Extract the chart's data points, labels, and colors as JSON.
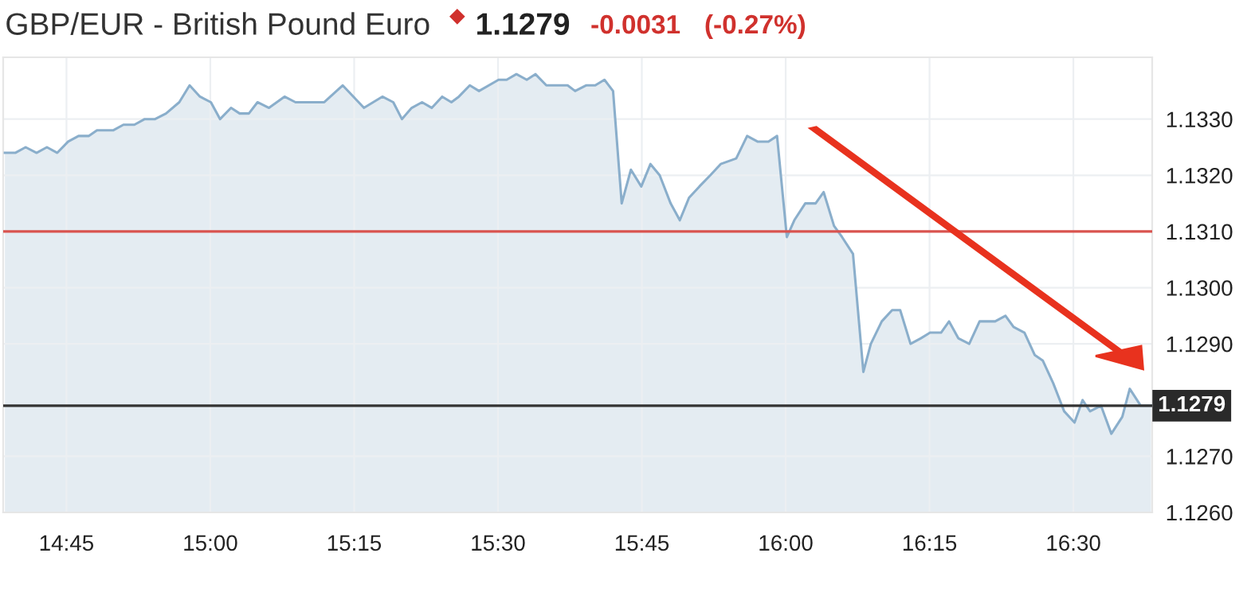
{
  "chart_data": {
    "type": "area",
    "title": "GBP/EUR - British Pound Euro",
    "annotations": [
      "1.1279",
      "-0.0031",
      "(-0.27%)"
    ],
    "x": [
      14.643,
      14.661,
      14.679,
      14.698,
      14.716,
      14.734,
      14.753,
      14.771,
      14.789,
      14.803,
      14.831,
      14.849,
      14.868,
      14.886,
      14.904,
      14.923,
      14.946,
      14.964,
      14.982,
      15.001,
      15.017,
      15.036,
      15.051,
      15.067,
      15.082,
      15.102,
      15.129,
      15.148,
      15.198,
      15.23,
      15.267,
      15.299,
      15.318,
      15.333,
      15.35,
      15.368,
      15.385,
      15.403,
      15.419,
      15.432,
      15.451,
      15.467,
      15.501,
      15.515,
      15.532,
      15.55,
      15.565,
      15.584,
      15.621,
      15.634,
      15.653,
      15.669,
      15.685,
      15.7,
      15.715,
      15.731,
      15.749,
      15.765,
      15.781,
      15.8,
      15.816,
      15.832,
      15.85,
      15.869,
      15.887,
      15.914,
      15.933,
      15.951,
      15.97,
      15.985,
      16.002,
      16.015,
      16.034,
      16.052,
      16.066,
      16.084,
      16.098,
      16.117,
      16.135,
      16.148,
      16.167,
      16.185,
      16.199,
      16.217,
      16.235,
      16.251,
      16.27,
      16.284,
      16.3,
      16.319,
      16.337,
      16.364,
      16.382,
      16.396,
      16.415,
      16.433,
      16.447,
      16.465,
      16.484,
      16.502,
      16.516,
      16.529,
      16.548,
      16.566,
      16.585,
      16.598,
      16.617,
      16.635
    ],
    "series": [
      {
        "color": "#8aaecb",
        "values": [
          1.1324,
          1.1324,
          1.1325,
          1.1324,
          1.1325,
          1.1324,
          1.1326,
          1.1327,
          1.1327,
          1.1328,
          1.1328,
          1.1329,
          1.1329,
          1.133,
          1.133,
          1.1331,
          1.1333,
          1.1336,
          1.1334,
          1.1333,
          1.133,
          1.1332,
          1.1331,
          1.1331,
          1.1333,
          1.1332,
          1.1334,
          1.1333,
          1.1333,
          1.1336,
          1.1332,
          1.1334,
          1.1333,
          1.133,
          1.1332,
          1.1333,
          1.1332,
          1.1334,
          1.1333,
          1.1334,
          1.1336,
          1.1335,
          1.1337,
          1.1337,
          1.1338,
          1.1337,
          1.1338,
          1.1336,
          1.1336,
          1.1335,
          1.1336,
          1.1336,
          1.1337,
          1.1335,
          1.1315,
          1.1321,
          1.1318,
          1.1322,
          1.132,
          1.1315,
          1.1312,
          1.1316,
          1.1318,
          1.132,
          1.1322,
          1.1323,
          1.1327,
          1.1326,
          1.1326,
          1.1327,
          1.1309,
          1.1312,
          1.1315,
          1.1315,
          1.1317,
          1.1311,
          1.1309,
          1.1306,
          1.1285,
          1.129,
          1.1294,
          1.1296,
          1.1296,
          1.129,
          1.1291,
          1.1292,
          1.1292,
          1.1294,
          1.1291,
          1.129,
          1.1294,
          1.1294,
          1.1295,
          1.1293,
          1.1292,
          1.1288,
          1.1287,
          1.1283,
          1.1278,
          1.1276,
          1.128,
          1.1278,
          1.1279,
          1.1274,
          1.1277,
          1.1282,
          1.1279,
          1.1279
        ]
      }
    ],
    "xlim": [
      14.64,
      16.637
    ],
    "xticks": [
      {
        "value": 14.75,
        "label": "14:45"
      },
      {
        "value": 15,
        "label": "15:00"
      },
      {
        "value": 15.25,
        "label": "15:15"
      },
      {
        "value": 15.5,
        "label": "15:30"
      },
      {
        "value": 15.75,
        "label": "15:45"
      },
      {
        "value": 16,
        "label": "16:00"
      },
      {
        "value": 16.25,
        "label": "16:15"
      },
      {
        "value": 16.5,
        "label": "16:30"
      }
    ],
    "ylim": [
      1.126,
      1.1341
    ],
    "yticks": [
      {
        "value": 1.126,
        "label": "1.1260"
      },
      {
        "value": 1.127,
        "label": "1.1270"
      },
      {
        "value": 1.129,
        "label": "1.1290"
      },
      {
        "value": 1.13,
        "label": "1.1300"
      },
      {
        "value": 1.131,
        "label": "1.1310"
      },
      {
        "value": 1.132,
        "label": "1.1320"
      },
      {
        "value": 1.133,
        "label": "1.1330"
      }
    ],
    "ref_lines": [
      {
        "axis": "y",
        "value": 1.131,
        "color": "#d9534f"
      },
      {
        "axis": "y",
        "value": 1.1279,
        "label": "1.1279",
        "color": "#333333"
      }
    ],
    "grid": true,
    "legend": false,
    "marker": "none",
    "line_style": "solid"
  }
}
